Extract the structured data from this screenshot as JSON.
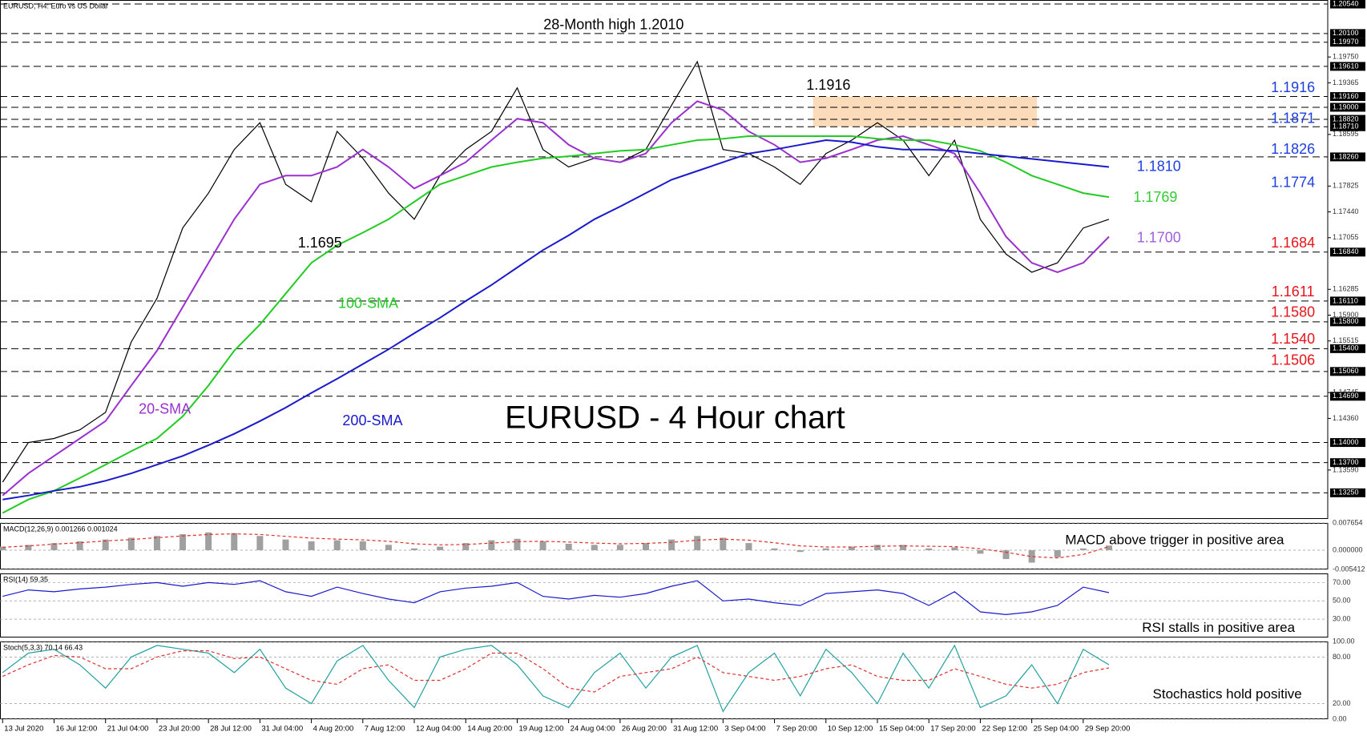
{
  "chart_data": [
    {
      "type": "line",
      "header": "EURUSD, H4:  Euro vs US Dollar",
      "title": "EURUSD - 4 Hour chart",
      "categories": [
        "13 Jul 2020",
        null,
        "16 Jul 12:00",
        null,
        "21 Jul 04:00",
        null,
        "23 Jul 20:00",
        null,
        "28 Jul 12:00",
        null,
        "31 Jul 04:00",
        null,
        "4 Aug 20:00",
        null,
        "7 Aug 12:00",
        null,
        "12 Aug 04:00",
        null,
        "14 Aug 20:00",
        null,
        "19 Aug 12:00",
        null,
        "24 Aug 04:00",
        null,
        "26 Aug 20:00",
        null,
        "31 Aug 12:00",
        null,
        "3 Sep 04:00",
        null,
        "7 Sep 20:00",
        null,
        "10 Sep 12:00",
        null,
        "15 Sep 04:00",
        null,
        "17 Sep 20:00",
        null,
        "22 Sep 12:00",
        null,
        "25 Sep 04:00",
        null,
        "29 Sep 20:00",
        null
      ],
      "ylim": [
        1.1286,
        1.206
      ],
      "yticks": [
        {
          "value": 1.1975,
          "label": "1.19750"
        },
        {
          "value": 1.19365,
          "label": "1.19365"
        },
        {
          "value": 1.18595,
          "label": "1.18595"
        },
        {
          "value": 1.17825,
          "label": "1.17825"
        },
        {
          "value": 1.1744,
          "label": "1.17440"
        },
        {
          "value": 1.17055,
          "label": "1.17055"
        },
        {
          "value": 1.16285,
          "label": "1.16285"
        },
        {
          "value": 1.159,
          "label": "1.15900"
        },
        {
          "value": 1.15515,
          "label": "1.15515"
        },
        {
          "value": 1.14745,
          "label": "1.14745"
        },
        {
          "value": 1.1436,
          "label": "1.14360"
        },
        {
          "value": 1.1359,
          "label": "1.13590"
        }
      ],
      "levels": [
        {
          "value": 1.2054,
          "label": "1.20540"
        },
        {
          "value": 1.201,
          "label": "1.20100"
        },
        {
          "value": 1.1997,
          "label": "1.19970"
        },
        {
          "value": 1.1961,
          "label": "1.19610"
        },
        {
          "value": 1.1916,
          "label": "1.19160"
        },
        {
          "value": 1.19,
          "label": "1.19000"
        },
        {
          "value": 1.1882,
          "label": "1.18820"
        },
        {
          "value": 1.1871,
          "label": "1.18710"
        },
        {
          "value": 1.1826,
          "label": "1.18260"
        },
        {
          "value": 1.1684,
          "label": "1.16840"
        },
        {
          "value": 1.1611,
          "label": "1.16110"
        },
        {
          "value": 1.158,
          "label": "1.15800"
        },
        {
          "value": 1.154,
          "label": "1.15400"
        },
        {
          "value": 1.1506,
          "label": "1.15060"
        },
        {
          "value": 1.1469,
          "label": "1.14690"
        },
        {
          "value": 1.14,
          "label": "1.14000"
        },
        {
          "value": 1.137,
          "label": "1.13700"
        },
        {
          "value": 1.1325,
          "label": "1.13250"
        }
      ],
      "series": [
        {
          "color": "#000000",
          "values": [
            1.1341,
            1.14,
            1.1406,
            1.1419,
            1.1445,
            1.155,
            1.1615,
            1.172,
            1.1772,
            1.1837,
            1.1877,
            1.1785,
            1.1759,
            1.1864,
            1.1824,
            1.1772,
            1.1733,
            1.1798,
            1.1837,
            1.1864,
            1.1929,
            1.1837,
            1.1811,
            1.1824,
            1.1818,
            1.1837,
            1.1903,
            1.1968,
            1.1837,
            1.1831,
            1.1811,
            1.1785,
            1.1831,
            1.1851,
            1.1877,
            1.1851,
            1.1798,
            1.1851,
            1.1733,
            1.1681,
            1.1654,
            1.1668,
            1.172,
            1.1733
          ]
        },
        {
          "name": "20-SMA",
          "color": "#9b30d0",
          "values": [
            1.1321,
            1.1354,
            1.138,
            1.1406,
            1.1432,
            1.1485,
            1.1537,
            1.1602,
            1.1668,
            1.1733,
            1.1785,
            1.1798,
            1.1798,
            1.1811,
            1.1837,
            1.1811,
            1.1779,
            1.1798,
            1.1818,
            1.1851,
            1.1883,
            1.1877,
            1.1844,
            1.1824,
            1.1818,
            1.1831,
            1.1877,
            1.1909,
            1.1896,
            1.1864,
            1.1844,
            1.1818,
            1.1824,
            1.1837,
            1.1851,
            1.1857,
            1.1844,
            1.1831,
            1.1772,
            1.1707,
            1.1668,
            1.1654,
            1.1668,
            1.1707
          ]
        },
        {
          "name": "100-SMA",
          "color": "#22cc22",
          "values": [
            1.1295,
            1.1315,
            1.1328,
            1.1347,
            1.1367,
            1.1387,
            1.1406,
            1.1439,
            1.1485,
            1.1537,
            1.1576,
            1.1622,
            1.1668,
            1.1694,
            1.1713,
            1.1733,
            1.1759,
            1.1785,
            1.1798,
            1.1811,
            1.1818,
            1.1824,
            1.1827,
            1.1831,
            1.1835,
            1.1837,
            1.1844,
            1.1851,
            1.1853,
            1.1857,
            1.1857,
            1.1857,
            1.1857,
            1.1857,
            1.1853,
            1.1851,
            1.1851,
            1.1844,
            1.1835,
            1.1818,
            1.1798,
            1.1785,
            1.1772,
            1.1766
          ]
        },
        {
          "name": "200-SMA",
          "color": "#1a1acc",
          "values": [
            1.1315,
            1.1321,
            1.1328,
            1.1334,
            1.1343,
            1.1354,
            1.1367,
            1.138,
            1.1396,
            1.1413,
            1.1432,
            1.1452,
            1.1474,
            1.1495,
            1.1517,
            1.1539,
            1.1563,
            1.1586,
            1.1611,
            1.1635,
            1.1661,
            1.1687,
            1.1709,
            1.1733,
            1.1752,
            1.1772,
            1.1792,
            1.1805,
            1.1818,
            1.1831,
            1.1837,
            1.1844,
            1.1851,
            1.1848,
            1.1841,
            1.1837,
            1.1837,
            1.1835,
            1.1831,
            1.1827,
            1.1823,
            1.1819,
            1.1815,
            1.1811
          ]
        }
      ],
      "annotations": [
        {
          "text": "28-Month high 1.2010",
          "color": "#000000"
        },
        {
          "text": "1.1916",
          "color": "#000000"
        },
        {
          "text": "1.1695",
          "color": "#000000"
        },
        {
          "text": "1.1916",
          "color": "#1f3fdc"
        },
        {
          "text": "1.1871",
          "color": "#1f3fdc"
        },
        {
          "text": "1.1826",
          "color": "#1f3fdc"
        },
        {
          "text": "1.1774",
          "color": "#1f3fdc"
        },
        {
          "text": "1.1684",
          "color": "#e8141c"
        },
        {
          "text": "1.1611",
          "color": "#e8141c"
        },
        {
          "text": "1.1580",
          "color": "#e8141c"
        },
        {
          "text": "1.1540",
          "color": "#e8141c"
        },
        {
          "text": "1.1506",
          "color": "#e8141c"
        },
        {
          "text": "1.1810",
          "color": "#1f3fdc"
        },
        {
          "text": "1.1769",
          "color": "#33cc33"
        },
        {
          "text": "1.1700",
          "color": "#a060e0"
        }
      ]
    },
    {
      "type": "bar",
      "header": "MACD(12,26,9) 0.001266 0.001024",
      "note": "MACD above trigger in positive area",
      "ylim": [
        -0.005412,
        0.007654
      ],
      "yticks": [
        0.007654,
        {
          "value": 0,
          "label": "0.000000"
        },
        -0.005412
      ],
      "series": [
        {
          "kind": "bar",
          "color": "#a0a0a0",
          "values": [
            0.001,
            0.0015,
            0.002,
            0.0025,
            0.003,
            0.0035,
            0.004,
            0.0045,
            0.005,
            0.0048,
            0.004,
            0.003,
            0.0025,
            0.0028,
            0.0025,
            0.0015,
            0.0005,
            0.001,
            0.002,
            0.0028,
            0.0032,
            0.0025,
            0.0018,
            0.0015,
            0.0015,
            0.002,
            0.003,
            0.004,
            0.0035,
            0.002,
            0.0005,
            -0.0005,
            0.0005,
            0.001,
            0.0015,
            0.0015,
            0.0005,
            0.0008,
            -0.001,
            -0.0025,
            -0.0035,
            -0.002,
            0.0005,
            0.0013
          ]
        },
        {
          "kind": "line",
          "dashed": true,
          "color": "#e03030",
          "values": [
            0.0008,
            0.0012,
            0.0017,
            0.0021,
            0.0026,
            0.003,
            0.0035,
            0.004,
            0.0044,
            0.0046,
            0.0044,
            0.0039,
            0.0034,
            0.0031,
            0.0029,
            0.0025,
            0.0018,
            0.0015,
            0.0016,
            0.002,
            0.0024,
            0.0025,
            0.0023,
            0.002,
            0.0018,
            0.0019,
            0.0022,
            0.0028,
            0.0031,
            0.0028,
            0.0021,
            0.0012,
            0.0009,
            0.0009,
            0.0011,
            0.0012,
            0.0011,
            0.001,
            0.0004,
            -0.0006,
            -0.0018,
            -0.0022,
            -0.0012,
            0.001
          ]
        }
      ]
    },
    {
      "type": "line",
      "header": "RSI(14) 59.35",
      "note": "RSI stalls in positive area",
      "ylim": [
        10,
        80
      ],
      "yticks": [
        {
          "value": 70,
          "label": "70.00"
        },
        {
          "value": 50,
          "label": "50.00"
        },
        {
          "value": 30,
          "label": "30.00"
        }
      ],
      "series": [
        {
          "color": "#1a1acc",
          "values": [
            55,
            62,
            60,
            63,
            65,
            68,
            70,
            66,
            70,
            68,
            72,
            60,
            55,
            65,
            58,
            52,
            48,
            60,
            64,
            66,
            70,
            55,
            52,
            56,
            54,
            58,
            66,
            72,
            50,
            52,
            48,
            45,
            58,
            60,
            62,
            58,
            45,
            60,
            38,
            35,
            38,
            45,
            65,
            59
          ]
        }
      ]
    },
    {
      "type": "line",
      "header": "Stoch(5,3,3) 70.14 66.43",
      "note": "Stochastics hold positive",
      "ylim": [
        0,
        100
      ],
      "yticks": [
        {
          "value": 100,
          "label": "100.00"
        },
        {
          "value": 80,
          "label": "80.00"
        },
        {
          "value": 20,
          "label": "20.00"
        },
        {
          "value": 0,
          "label": "0.00"
        }
      ],
      "series": [
        {
          "color": "#20a0a0",
          "values": [
            60,
            85,
            90,
            70,
            40,
            80,
            95,
            90,
            85,
            60,
            90,
            40,
            20,
            75,
            95,
            50,
            15,
            80,
            90,
            95,
            70,
            30,
            15,
            60,
            85,
            40,
            80,
            95,
            10,
            60,
            85,
            30,
            90,
            60,
            20,
            85,
            40,
            95,
            15,
            30,
            70,
            20,
            90,
            70
          ]
        },
        {
          "dashed": true,
          "color": "#e03030",
          "values": [
            55,
            70,
            82,
            80,
            65,
            65,
            80,
            88,
            88,
            78,
            80,
            65,
            50,
            45,
            65,
            70,
            50,
            50,
            65,
            85,
            85,
            65,
            40,
            35,
            55,
            60,
            65,
            80,
            60,
            55,
            50,
            55,
            65,
            70,
            55,
            50,
            50,
            65,
            55,
            45,
            40,
            45,
            60,
            66
          ]
        }
      ]
    }
  ]
}
